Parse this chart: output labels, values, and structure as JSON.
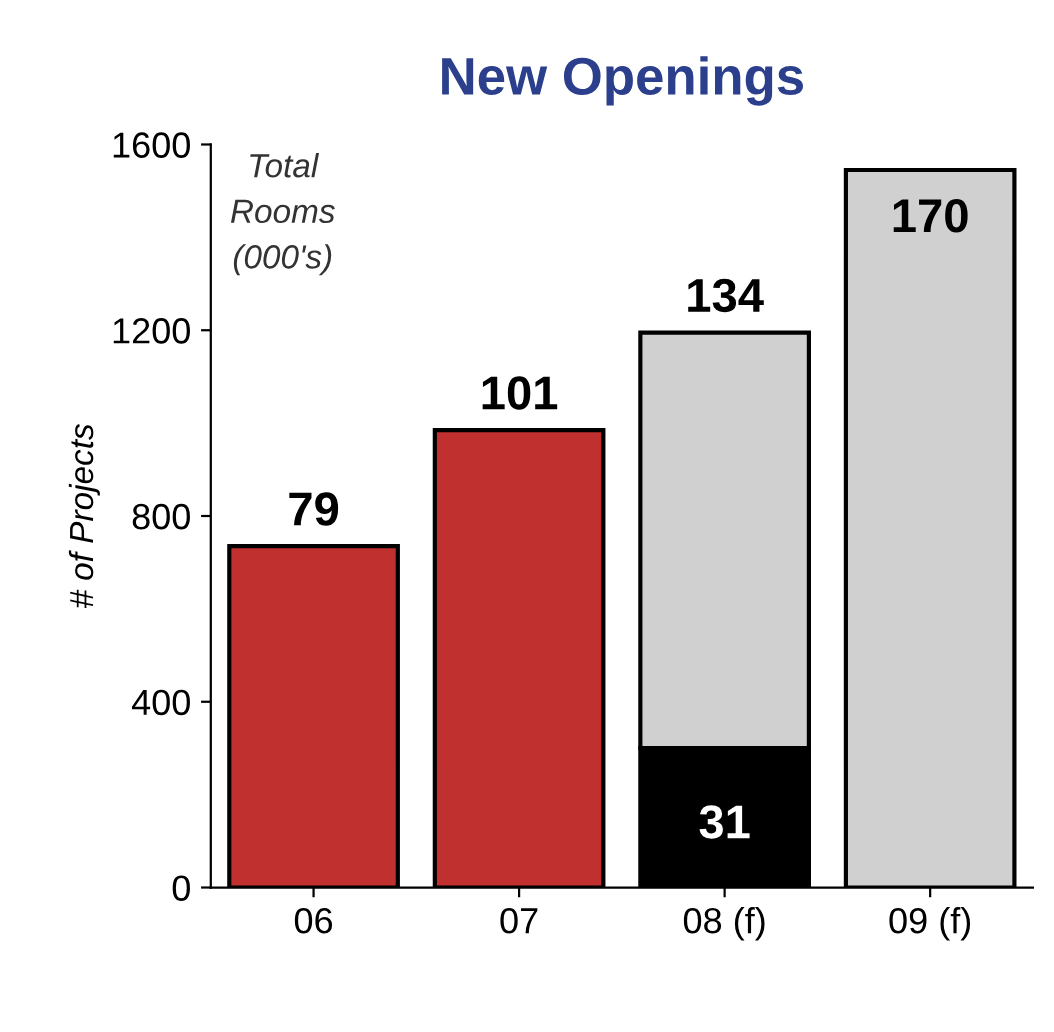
{
  "chart_data": {
    "type": "bar",
    "title": "New Openings",
    "ylabel": "# of Projects",
    "stacked": true,
    "categories": [
      "06",
      "07",
      "08 (f)",
      "09 (f)"
    ],
    "series": [
      {
        "colors": [
          "#c0302e",
          "#c0302e",
          "#000000",
          "#c0302e"
        ],
        "values": [
          735,
          985,
          300,
          null
        ]
      },
      {
        "color": "#d0d0d0",
        "values": [
          null,
          null,
          895,
          1545
        ]
      }
    ],
    "ylim": [
      0,
      1600
    ],
    "yticks": [
      0,
      400,
      800,
      1200,
      1600
    ],
    "grid": false,
    "annotations": [
      {
        "text": "79",
        "x": "06",
        "y": 735
      },
      {
        "text": "101",
        "x": "07",
        "y": 985
      },
      {
        "text": "134",
        "x": "08 (f)",
        "y": 1195
      },
      {
        "text": "31",
        "x": "08 (f)",
        "y": 300
      },
      {
        "text": "170",
        "x": "09 (f)",
        "y": 1545
      },
      "Total\nRooms\n(000's)"
    ]
  }
}
